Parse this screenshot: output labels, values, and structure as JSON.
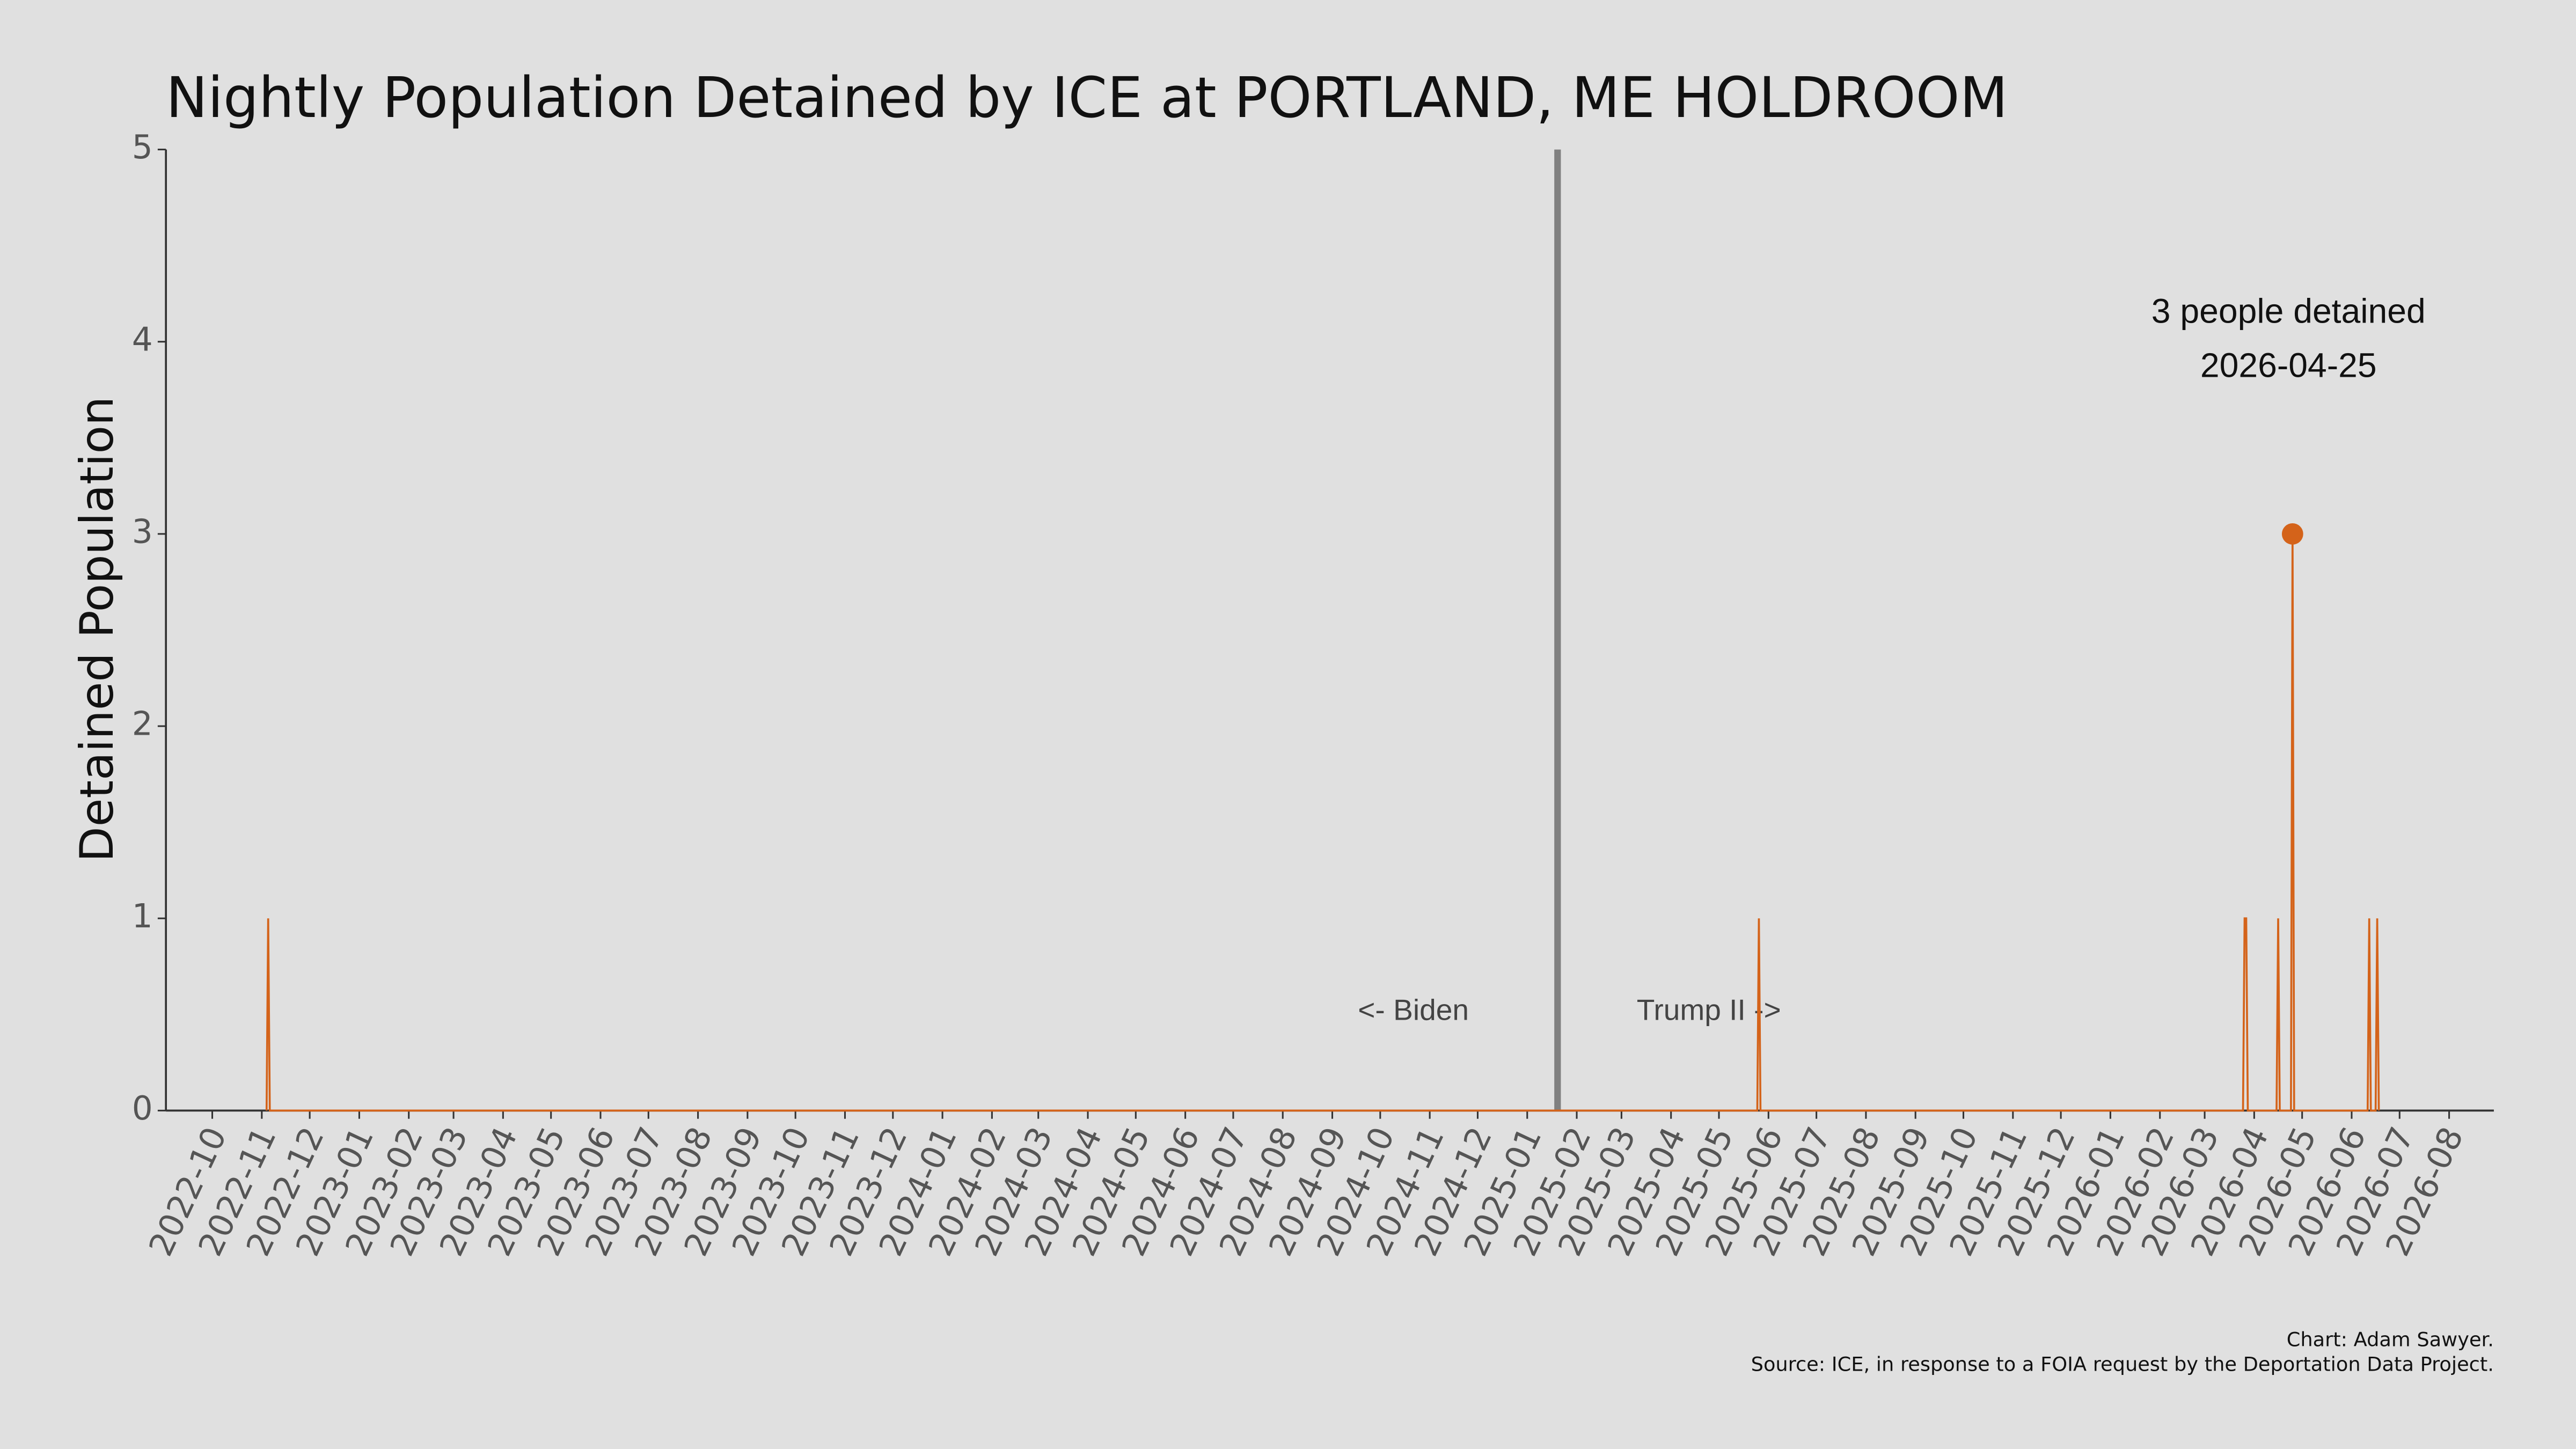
{
  "chart_data": {
    "type": "line",
    "title": "Nightly Population Detained by ICE at PORTLAND, ME HOLDROOM",
    "y_label": "Detained Population",
    "x": [
      "2022-11-04",
      "2022-11-05",
      "2022-11-06",
      "2025-05-25",
      "2025-05-26",
      "2025-05-27",
      "2026-03-25",
      "2026-03-26",
      "2026-03-27",
      "2026-03-28",
      "2026-04-15",
      "2026-04-16",
      "2026-04-17",
      "2026-04-24",
      "2026-04-25",
      "2026-04-26",
      "2026-06-11",
      "2026-06-12",
      "2026-06-13",
      "2026-06-16",
      "2026-06-17",
      "2026-06-18"
    ],
    "series": [
      {
        "name": "Detained Population",
        "color": "#d4631a",
        "values": [
          0,
          1,
          0,
          0,
          1,
          0,
          0,
          1,
          1,
          0,
          0,
          1,
          0,
          0,
          3,
          0,
          0,
          1,
          0,
          0,
          1,
          0
        ]
      }
    ],
    "xlim": [
      "2022-09-02",
      "2026-08-29"
    ],
    "xticks": [
      "2022-10",
      "2022-11",
      "2022-12",
      "2023-01",
      "2023-02",
      "2023-03",
      "2023-04",
      "2023-05",
      "2023-06",
      "2023-07",
      "2023-08",
      "2023-09",
      "2023-10",
      "2023-11",
      "2023-12",
      "2024-01",
      "2024-02",
      "2024-03",
      "2024-04",
      "2024-05",
      "2024-06",
      "2024-07",
      "2024-08",
      "2024-09",
      "2024-10",
      "2024-11",
      "2024-12",
      "2025-01",
      "2025-02",
      "2025-03",
      "2025-04",
      "2025-05",
      "2025-06",
      "2025-07",
      "2025-08",
      "2025-09",
      "2025-10",
      "2025-11",
      "2025-12",
      "2026-01",
      "2026-02",
      "2026-03",
      "2026-04",
      "2026-05",
      "2026-06",
      "2026-07",
      "2026-08"
    ],
    "ylim": [
      0,
      5
    ],
    "yticks": [
      0,
      1,
      2,
      3,
      4,
      5
    ],
    "grid": false,
    "divider": {
      "x": "2025-01-20",
      "color": "#808080",
      "left_label": "<- Biden",
      "right_label": "Trump II ->"
    },
    "annotation": [
      "3 people detained",
      "2026-04-25"
    ],
    "footer": [
      "Chart: Adam Sawyer.",
      "Source: ICE, in response to a FOIA request by the Deportation Data Project."
    ]
  }
}
